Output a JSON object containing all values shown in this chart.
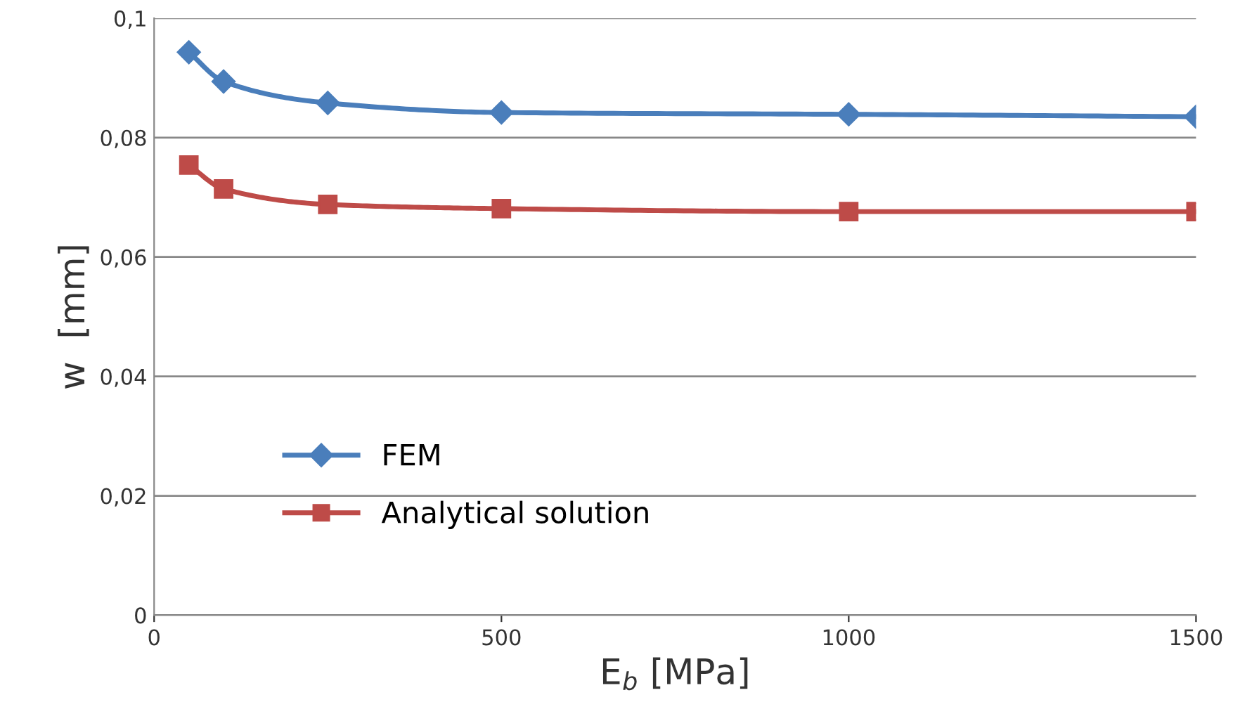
{
  "chart_data": {
    "type": "line",
    "xlabel": "E$_{b}$ [MPa]",
    "ylabel": "w  [mm]",
    "x": [
      50,
      100,
      250,
      500,
      1000,
      1500
    ],
    "series": [
      {
        "name": "FEM",
        "color": "#4a7ebb",
        "marker": "diamond",
        "values": [
          0.0943,
          0.0894,
          0.0858,
          0.0842,
          0.0839,
          0.0835
        ]
      },
      {
        "name": "Analytical solution",
        "color": "#be4b48",
        "marker": "square",
        "values": [
          0.0754,
          0.0714,
          0.0688,
          0.0681,
          0.0676,
          0.0676
        ]
      }
    ],
    "xlim": [
      0,
      1500
    ],
    "xticks": [
      0,
      500,
      1000,
      1500
    ],
    "ylim": [
      0,
      0.1
    ],
    "yticks": [
      0,
      {
        "value": 0.02,
        "label": "0,02"
      },
      {
        "value": 0.04,
        "label": "0,04"
      },
      {
        "value": 0.06,
        "label": "0,06"
      },
      {
        "value": 0.08,
        "label": "0,08"
      },
      {
        "value": 0.1,
        "label": "0,1"
      }
    ],
    "grid": "y",
    "legend": "bottom left",
    "line_style": "solid"
  }
}
